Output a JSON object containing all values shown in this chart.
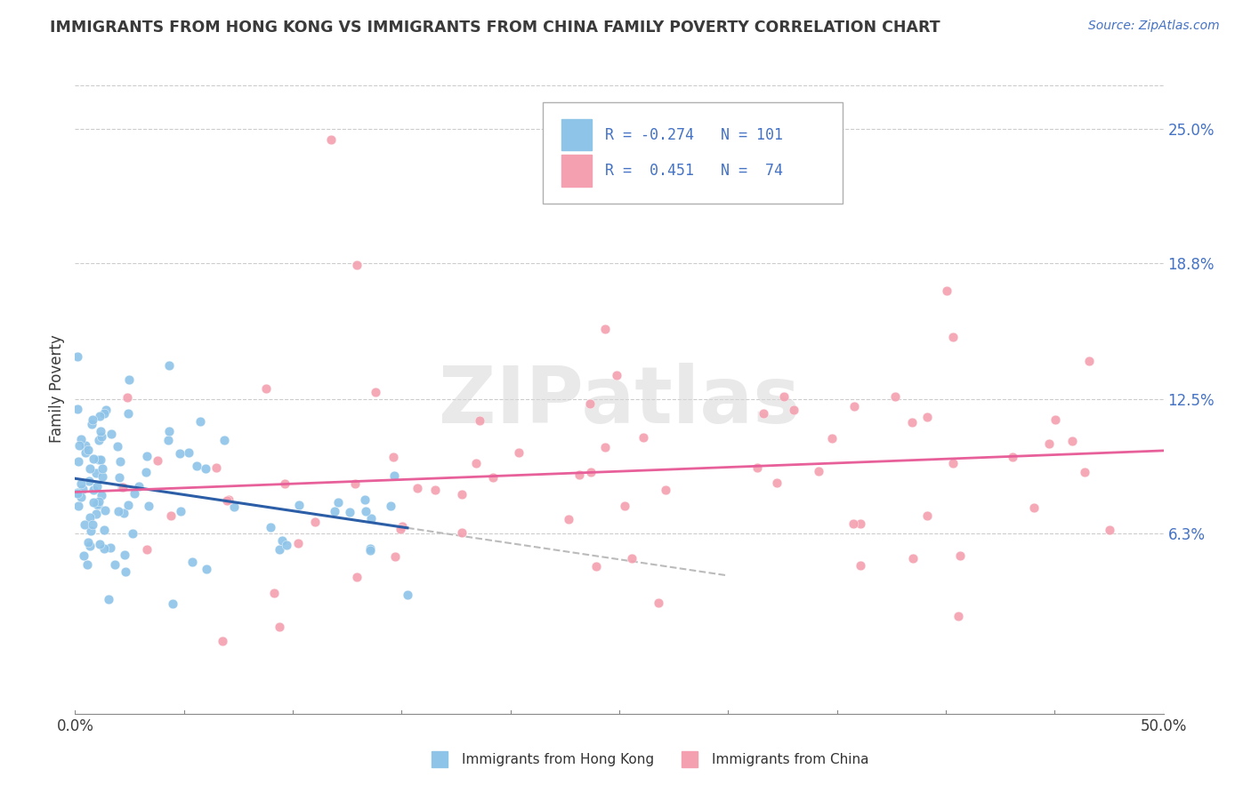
{
  "title": "IMMIGRANTS FROM HONG KONG VS IMMIGRANTS FROM CHINA FAMILY POVERTY CORRELATION CHART",
  "source": "Source: ZipAtlas.com",
  "ylabel": "Family Poverty",
  "ytick_labels": [
    "6.3%",
    "12.5%",
    "18.8%",
    "25.0%"
  ],
  "ytick_values": [
    0.063,
    0.125,
    0.188,
    0.25
  ],
  "xtick_labels": [
    "0.0%",
    "50.0%"
  ],
  "xtick_values": [
    0.0,
    0.5
  ],
  "xlim": [
    0.0,
    0.5
  ],
  "ylim": [
    -0.02,
    0.28
  ],
  "legend_hk": "Immigrants from Hong Kong",
  "legend_china": "Immigrants from China",
  "R_hk": -0.274,
  "N_hk": 101,
  "R_china": 0.451,
  "N_china": 74,
  "color_hk": "#8ec4e8",
  "color_china": "#f4a0b0",
  "line_color_hk": "#2b5ea7",
  "line_color_china": "#e8609a",
  "watermark": "ZIPatlas",
  "background_color": "#ffffff",
  "title_color": "#3a3a3a",
  "source_color": "#4472c4",
  "ytick_color": "#4472c4",
  "xtick_color": "#3a3a3a",
  "ylabel_color": "#3a3a3a"
}
